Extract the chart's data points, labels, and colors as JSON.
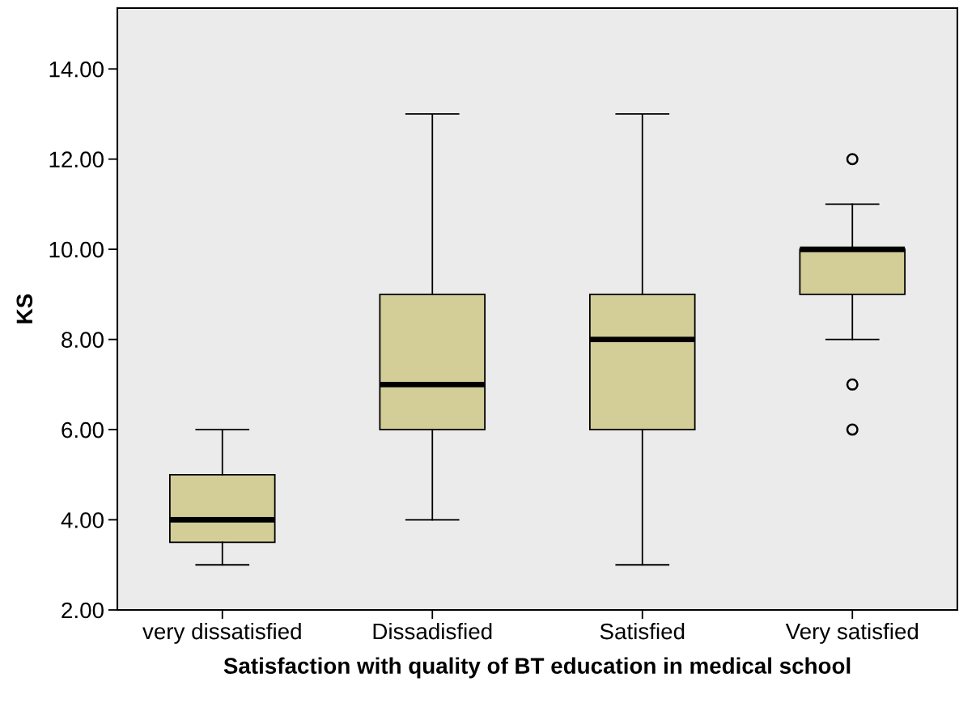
{
  "chart_data": {
    "type": "box",
    "xlabel": "Satisfaction with quality of BT education in medical school",
    "ylabel": "KS",
    "categories": [
      "very dissatisfied",
      "Dissadisfied",
      "Satisfied",
      "Very satisfied"
    ],
    "series": [
      {
        "color": "#d3ce98",
        "boxes": [
          {
            "low": 3,
            "q1": 3.5,
            "median": 4,
            "q3": 5,
            "high": 6
          },
          {
            "low": 4,
            "q1": 6,
            "median": 7,
            "q3": 9,
            "high": 13
          },
          {
            "low": 3,
            "q1": 6,
            "median": 8,
            "q3": 9,
            "high": 13
          },
          {
            "low": 8,
            "q1": 9,
            "median": 10,
            "q3": 10,
            "high": 11,
            "outliers": [
              12,
              7,
              6
            ]
          }
        ]
      }
    ],
    "ylim": [
      2,
      15.35
    ],
    "yticks": [
      {
        "value": 2,
        "label": "2.00"
      },
      {
        "value": 4,
        "label": "4.00"
      },
      {
        "value": 6,
        "label": "6.00"
      },
      {
        "value": 8,
        "label": "8.00"
      },
      {
        "value": 10,
        "label": "10.00"
      },
      {
        "value": 12,
        "label": "12.00"
      },
      {
        "value": 14,
        "label": "14.00"
      }
    ],
    "grid": false,
    "legend": false
  }
}
